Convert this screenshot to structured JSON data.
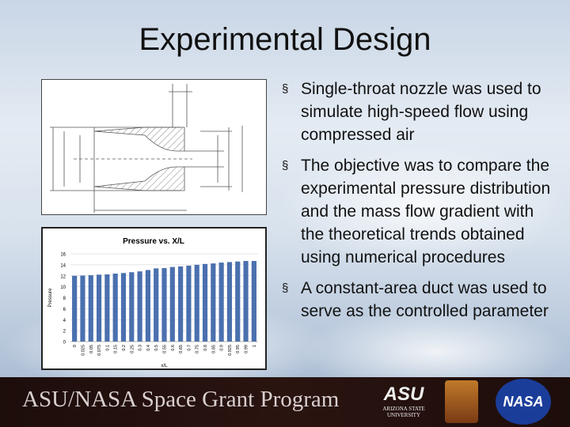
{
  "slide": {
    "title": "Experimental Design"
  },
  "bullets": [
    {
      "text": "Single-throat nozzle was used to simulate high-speed flow using compressed air"
    },
    {
      "text": "The objective was to compare the experimental pressure distribution and the mass flow gradient with the theoretical trends obtained using numerical procedures"
    },
    {
      "text": "A constant-area duct was used to serve as the controlled parameter"
    }
  ],
  "bullet_icon": "section-sign",
  "footer": {
    "text": "ASU/NASA Space Grant Program",
    "asu_logo": "ASU",
    "asu_name": "ARIZONA STATE UNIVERSITY",
    "nasa_logo": "NASA"
  },
  "chart_data": {
    "type": "bar",
    "title": "Pressure vs. X/L",
    "xlabel": "x/L",
    "ylabel": "Pressure",
    "ylim": [
      0,
      16
    ],
    "yticks": [
      0,
      2,
      4,
      6,
      8,
      10,
      12,
      14,
      16
    ],
    "grid": true,
    "color": "#4a70ae",
    "categories": [
      "0",
      "0.025",
      "0.05",
      "0.075",
      "0.1",
      "0.15",
      "0.2",
      "0.25",
      "0.3",
      "0.4",
      "0.5",
      "0.55",
      "0.6",
      "0.65",
      "0.7",
      "0.75",
      "0.8",
      "0.85",
      "0.9",
      "0.925",
      "0.95",
      "0.99",
      "1"
    ],
    "values": [
      12.0,
      12.05,
      12.1,
      12.2,
      12.25,
      12.4,
      12.5,
      12.65,
      12.8,
      13.05,
      13.35,
      13.4,
      13.6,
      13.7,
      13.85,
      14.0,
      14.15,
      14.25,
      14.4,
      14.5,
      14.6,
      14.7,
      14.7
    ]
  }
}
